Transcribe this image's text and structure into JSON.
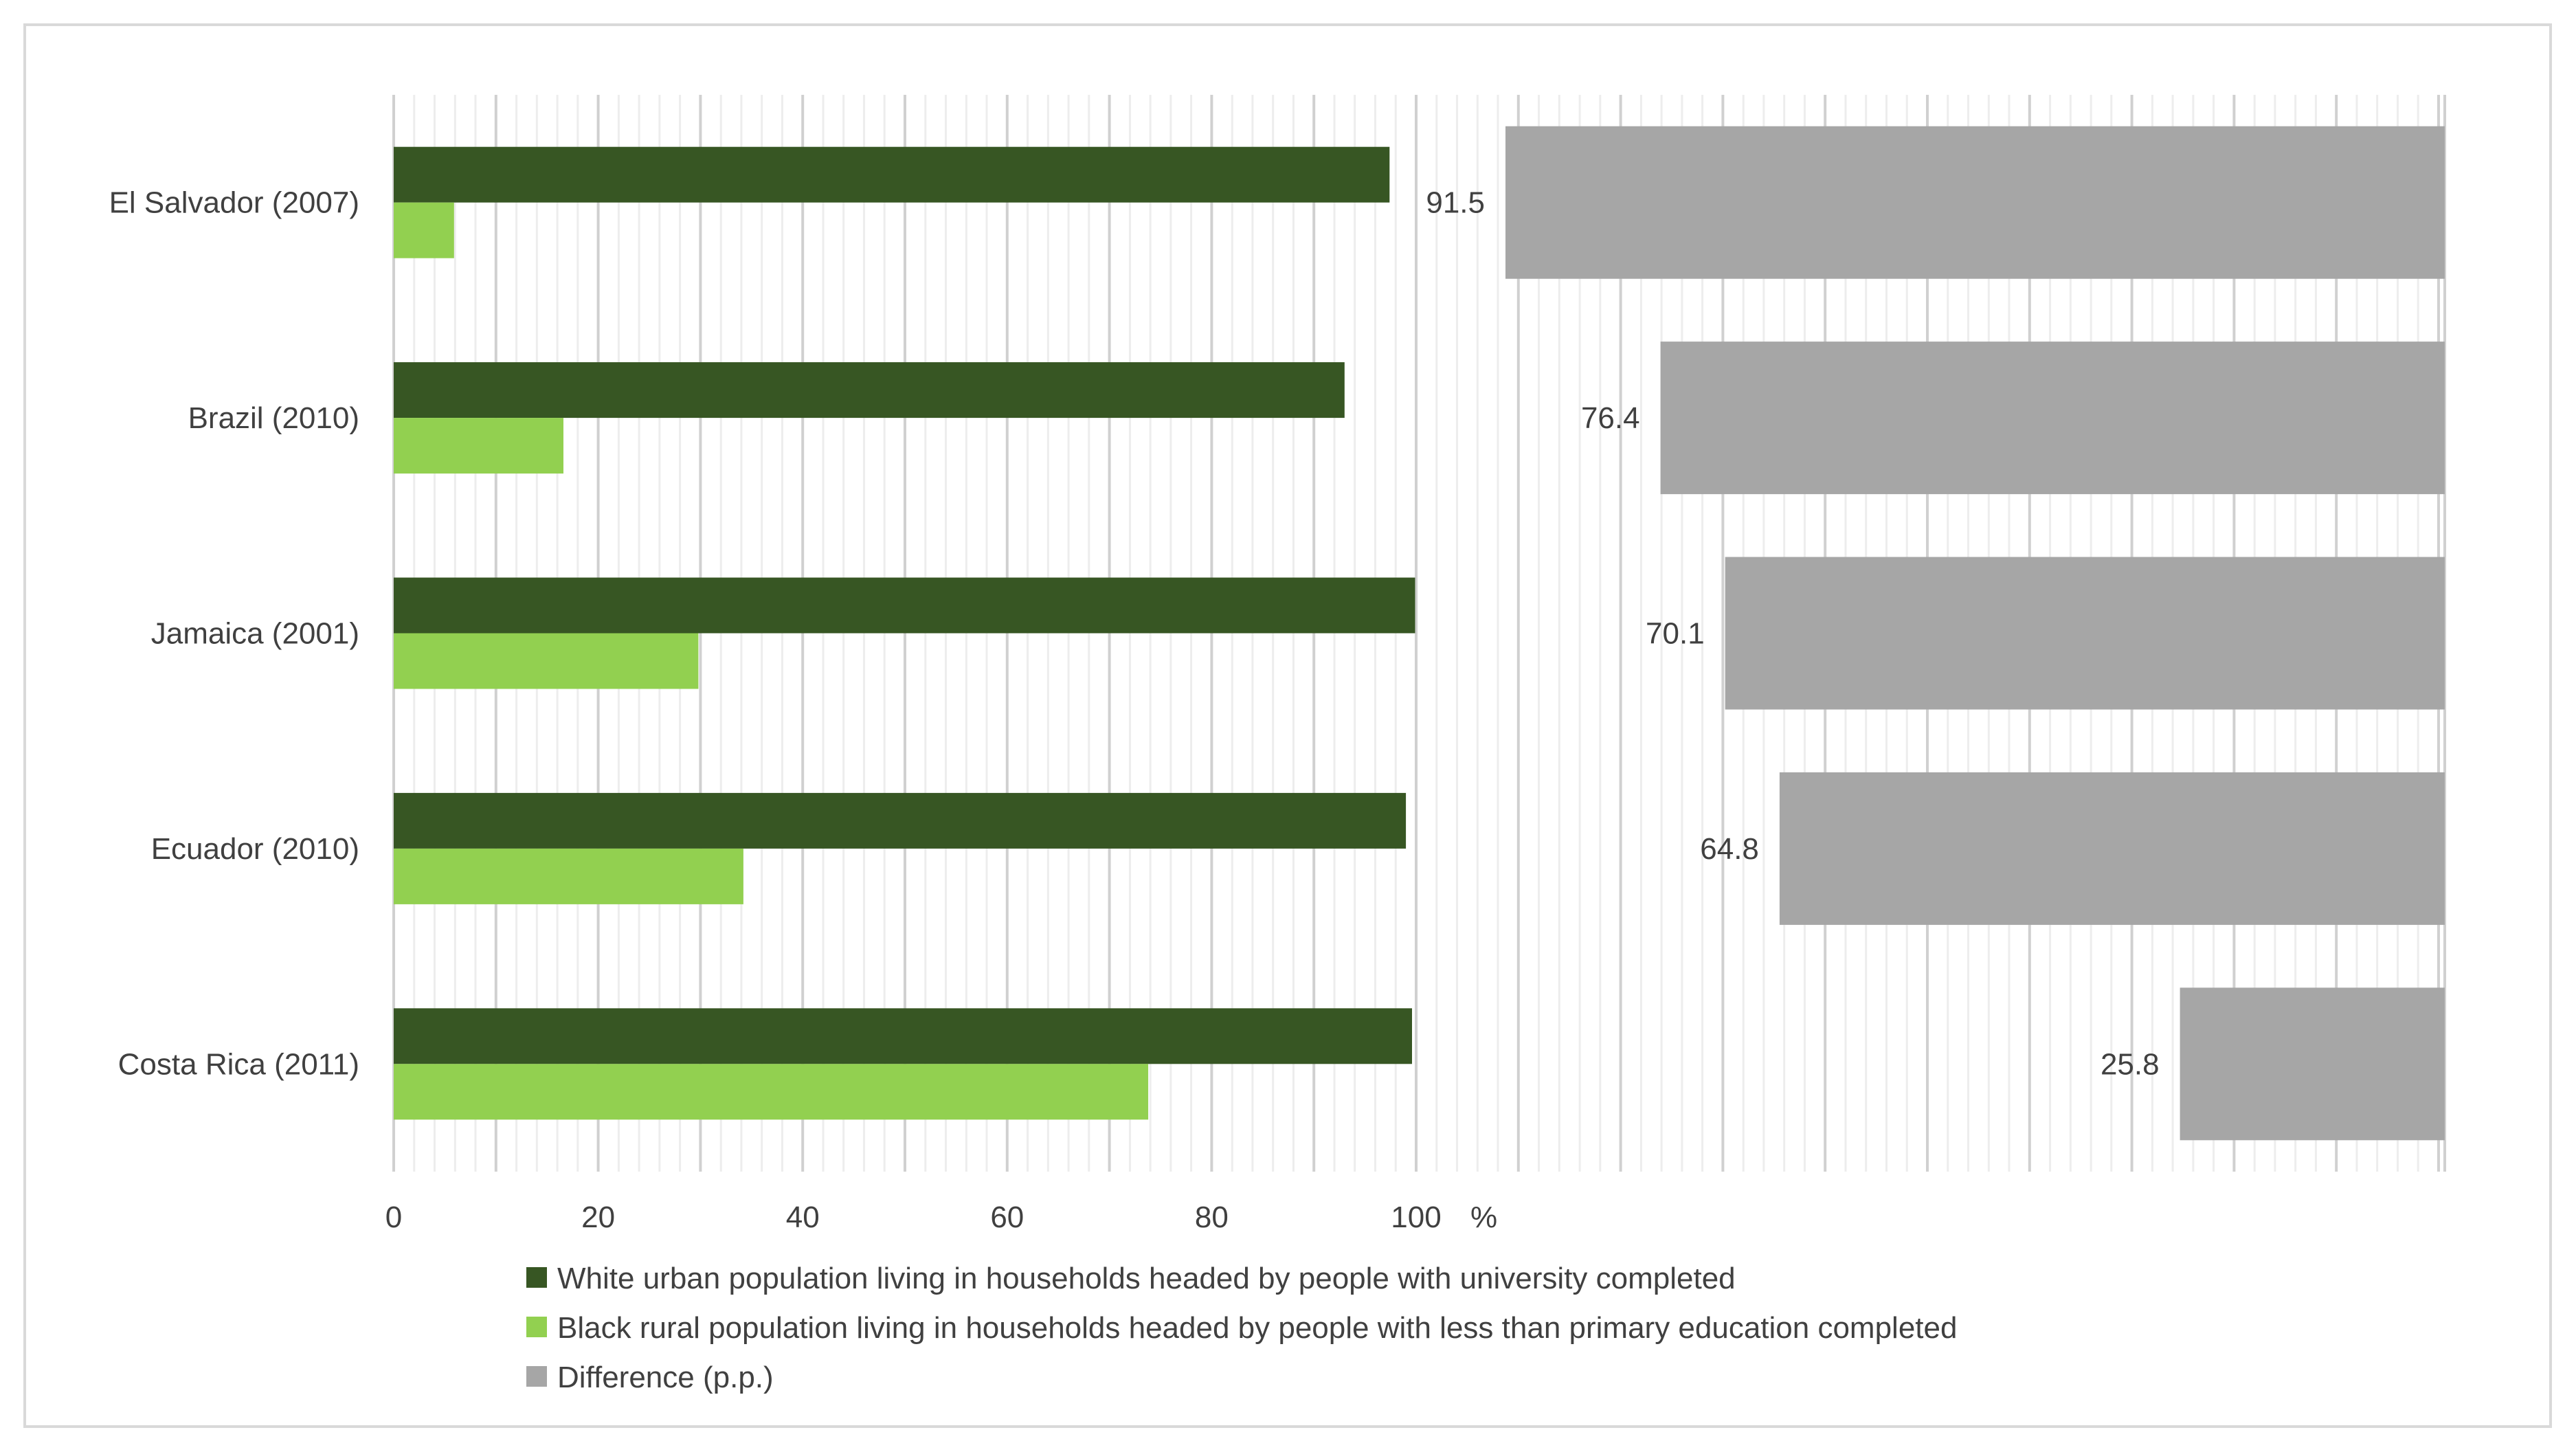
{
  "chart_data": {
    "type": "bar",
    "orientation": "horizontal",
    "title": "",
    "unit": "%",
    "categories": [
      "El Salvador (2007)",
      "Brazil (2010)",
      "Jamaica (2001)",
      "Ecuador (2010)",
      "Costa Rica (2011)"
    ],
    "xlim": [
      0,
      100
    ],
    "xticks": [
      0,
      20,
      40,
      60,
      80,
      100
    ],
    "grid": true,
    "legend_position": "bottom",
    "series": [
      {
        "name": "White urban population living in households headed by people with university completed",
        "color": "#375623",
        "values": [
          97.4,
          93.0,
          99.9,
          99.0,
          99.6
        ]
      },
      {
        "name": "Black rural population living in households headed by people with less than primary education completed",
        "color": "#92d050",
        "values": [
          5.9,
          16.6,
          29.8,
          34.2,
          73.8
        ]
      },
      {
        "name": "Difference (p.p.)",
        "color": "#a6a6a6",
        "values": [
          91.5,
          76.4,
          70.1,
          64.8,
          25.8
        ],
        "value_labels": [
          "91.5",
          "76.4",
          "70.1",
          "64.8",
          "25.8"
        ],
        "panel": "right",
        "direction": "right-aligned"
      }
    ]
  }
}
